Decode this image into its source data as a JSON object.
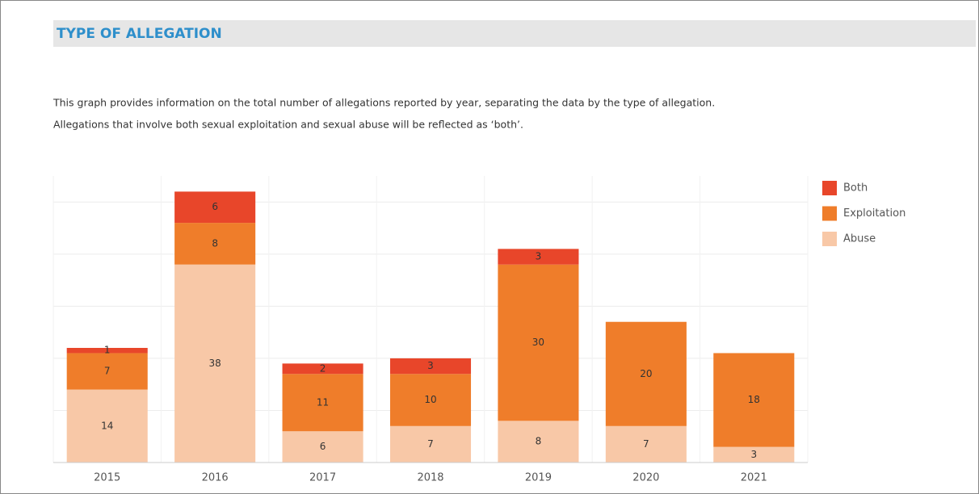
{
  "chart_data": {
    "type": "stacked_bar",
    "title": "TYPE OF ALLEGATION",
    "subtitle": [
      "This graph provides information on the total number of allegations reported by year, separating the data by the type of allegation.",
      "Allegations that involve both sexual exploitation and sexual abuse will be reflected as ‘both’."
    ],
    "categories": [
      "2015",
      "2016",
      "2017",
      "2018",
      "2019",
      "2020",
      "2021"
    ],
    "series": [
      {
        "name": "Both",
        "color": "#e8462a",
        "values": [
          1,
          6,
          2,
          3,
          3,
          null,
          null
        ]
      },
      {
        "name": "Exploitation",
        "color": "#ef7d2a",
        "values": [
          7,
          8,
          11,
          10,
          30,
          20,
          18
        ]
      },
      {
        "name": "Abuse",
        "color": "#f8c8a7",
        "values": [
          14,
          38,
          6,
          7,
          8,
          7,
          3
        ]
      }
    ],
    "ylim": [
      0,
      55
    ],
    "yticks": [
      0,
      10,
      20,
      30,
      40,
      50
    ],
    "grid": true,
    "legend": "right"
  }
}
